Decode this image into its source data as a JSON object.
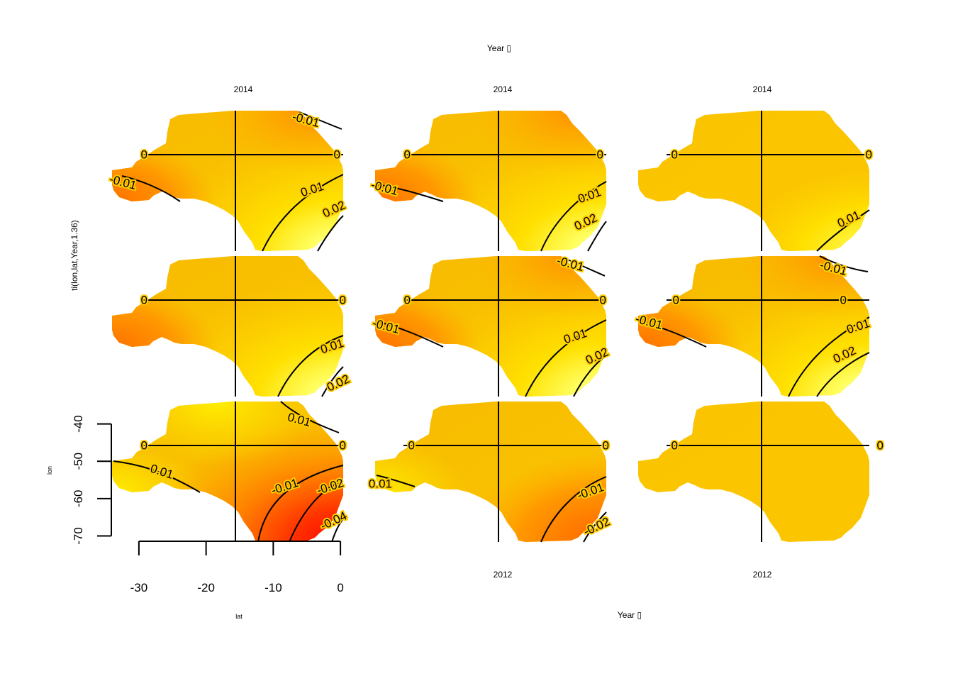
{
  "chart_data": {
    "type": "heatmap",
    "title": "",
    "top_axis_label": "Year",
    "bottom_axis_label": "Year",
    "ylabel": "ti(lon,lat,Year,1.36)",
    "inner_xlabel": "lat",
    "inner_ylabel": "lon",
    "top_year_labels": [
      "2014",
      "2014",
      "2014"
    ],
    "bottom_year_labels": [
      "2012",
      "2012"
    ],
    "x_ticks": [
      -30,
      -20,
      -10,
      0
    ],
    "y_ticks": [
      -40,
      -50,
      -60,
      -70
    ],
    "xlim": [
      -34,
      4
    ],
    "ylim": [
      -72,
      -34
    ],
    "colormap": [
      "#ff0000",
      "#ff8000",
      "#ffc000",
      "#ffff00",
      "#ffffe0"
    ],
    "panels": [
      {
        "row": 0,
        "col": 0,
        "contours": [
          {
            "level": "-0.01",
            "labels": [
              "-0.01",
              "-0.01"
            ]
          },
          {
            "level": "0",
            "labels": [
              "0",
              "0"
            ]
          },
          {
            "level": "0.01",
            "labels": [
              "0.01"
            ]
          },
          {
            "level": "0.02",
            "labels": [
              "0.02"
            ]
          }
        ]
      },
      {
        "row": 0,
        "col": 1,
        "contours": [
          {
            "level": "-0.01",
            "labels": [
              "-0.01"
            ]
          },
          {
            "level": "0",
            "labels": [
              "0",
              "0"
            ]
          },
          {
            "level": "0.01",
            "labels": [
              "0.01"
            ]
          },
          {
            "level": "0.02",
            "labels": [
              "0.02"
            ]
          }
        ]
      },
      {
        "row": 0,
        "col": 2,
        "contours": [
          {
            "level": "0",
            "labels": [
              "0",
              "0"
            ]
          },
          {
            "level": "0.01",
            "labels": [
              "0.01"
            ]
          }
        ]
      },
      {
        "row": 1,
        "col": 0,
        "contours": [
          {
            "level": "0",
            "labels": [
              "0",
              "0"
            ]
          },
          {
            "level": "0.01",
            "labels": [
              "0.01"
            ]
          },
          {
            "level": "0.02",
            "labels": [
              "0.02"
            ]
          }
        ]
      },
      {
        "row": 1,
        "col": 1,
        "contours": [
          {
            "level": "-0.01",
            "labels": [
              "-0.01",
              "-0.01"
            ]
          },
          {
            "level": "0",
            "labels": [
              "0",
              "0"
            ]
          },
          {
            "level": "0.01",
            "labels": [
              "0.01"
            ]
          },
          {
            "level": "0.02",
            "labels": [
              "0.02"
            ]
          }
        ]
      },
      {
        "row": 1,
        "col": 2,
        "contours": [
          {
            "level": "-0.01",
            "labels": [
              "-0.01",
              "-0.01"
            ]
          },
          {
            "level": "0",
            "labels": [
              "0",
              "0"
            ]
          },
          {
            "level": "0.01",
            "labels": [
              "0.01"
            ]
          },
          {
            "level": "0.02",
            "labels": [
              "0.02"
            ]
          }
        ]
      },
      {
        "row": 2,
        "col": 0,
        "contours": [
          {
            "level": "0.01",
            "labels": [
              "0.01",
              "0.01"
            ]
          },
          {
            "level": "0",
            "labels": [
              "0",
              "0"
            ]
          },
          {
            "level": "-0.01",
            "labels": [
              "-0.01"
            ]
          },
          {
            "level": "-0.02",
            "labels": [
              "-0.02"
            ]
          },
          {
            "level": "-0.04",
            "labels": [
              "-0.04"
            ]
          }
        ]
      },
      {
        "row": 2,
        "col": 1,
        "contours": [
          {
            "level": "0.01",
            "labels": [
              "0.01"
            ]
          },
          {
            "level": "0",
            "labels": [
              "0",
              "0"
            ]
          },
          {
            "level": "-0.01",
            "labels": [
              "-0.01"
            ]
          },
          {
            "level": "-0.02",
            "labels": [
              "-0.02"
            ]
          }
        ]
      },
      {
        "row": 2,
        "col": 2,
        "contours": [
          {
            "level": "0",
            "labels": [
              "0",
              "0"
            ]
          }
        ]
      }
    ]
  }
}
